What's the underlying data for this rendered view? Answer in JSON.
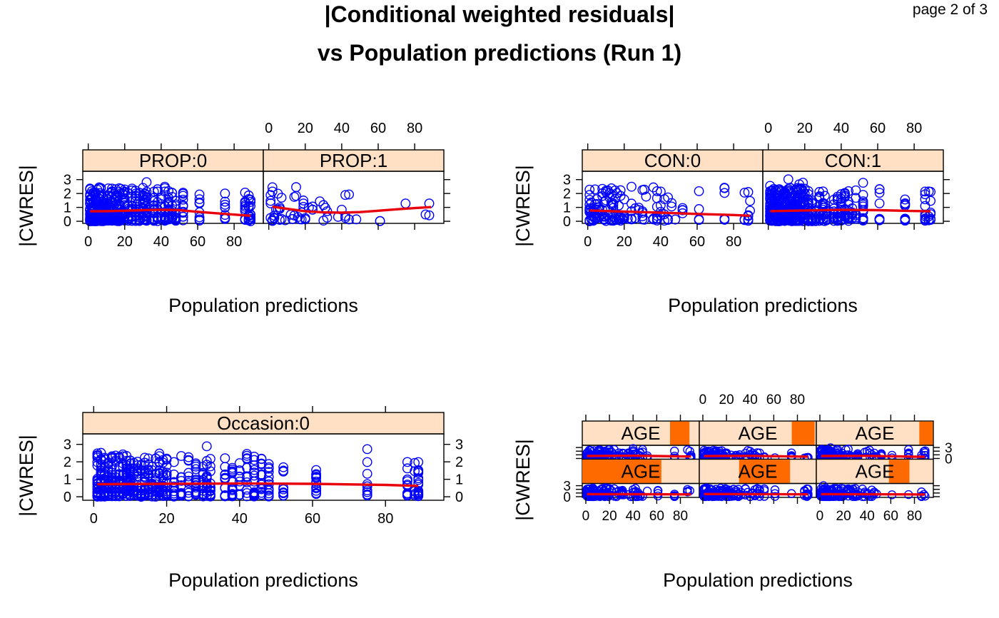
{
  "title": {
    "line1": "|Conditional weighted residuals|",
    "line2": "vs Population predictions (Run 1)",
    "page": "page 2 of 3"
  },
  "colors": {
    "point": "#0000ff",
    "smooth": "#e8000b",
    "strip_bg": "#ffe0c4",
    "strip_shade": "#ff6a00"
  },
  "chart_data": [
    {
      "type": "scatter",
      "xlabel": "Population predictions",
      "ylabel": "|CWRES|",
      "xlim": [
        -3,
        96
      ],
      "ylim": [
        -0.15,
        3.6
      ],
      "x_ticks": [
        0,
        20,
        40,
        60,
        80
      ],
      "y_ticks": [
        0,
        1,
        2,
        3
      ],
      "layout": "1x2",
      "panels": [
        {
          "strip": "PROP:0",
          "smooth": [
            [
              1,
              0.72
            ],
            [
              10,
              0.73
            ],
            [
              20,
              0.76
            ],
            [
              30,
              0.8
            ],
            [
              40,
              0.83
            ],
            [
              50,
              0.8
            ],
            [
              60,
              0.68
            ],
            [
              70,
              0.58
            ],
            [
              80,
              0.48
            ],
            [
              89,
              0.4
            ]
          ]
        },
        {
          "strip": "PROP:1",
          "smooth": [
            [
              2,
              1.05
            ],
            [
              10,
              0.9
            ],
            [
              20,
              0.72
            ],
            [
              30,
              0.64
            ],
            [
              40,
              0.62
            ],
            [
              50,
              0.66
            ],
            [
              60,
              0.76
            ],
            [
              70,
              0.86
            ],
            [
              80,
              0.95
            ],
            [
              89,
              1.02
            ]
          ]
        }
      ]
    },
    {
      "type": "scatter",
      "xlabel": "Population predictions",
      "ylabel": "|CWRES|",
      "xlim": [
        -3,
        96
      ],
      "ylim": [
        -0.15,
        3.6
      ],
      "x_ticks": [
        0,
        20,
        40,
        60,
        80
      ],
      "y_ticks": [
        0,
        1,
        2,
        3
      ],
      "layout": "1x2",
      "panels": [
        {
          "strip": "CON:0",
          "smooth": [
            [
              1,
              0.78
            ],
            [
              20,
              0.7
            ],
            [
              40,
              0.62
            ],
            [
              60,
              0.53
            ],
            [
              80,
              0.45
            ],
            [
              89,
              0.4
            ]
          ]
        },
        {
          "strip": "CON:1",
          "smooth": [
            [
              1,
              0.73
            ],
            [
              20,
              0.78
            ],
            [
              40,
              0.82
            ],
            [
              60,
              0.8
            ],
            [
              80,
              0.74
            ],
            [
              89,
              0.72
            ]
          ]
        }
      ]
    },
    {
      "type": "scatter",
      "xlabel": "Population predictions",
      "ylabel": "|CWRES|",
      "xlim": [
        -3,
        96
      ],
      "ylim": [
        -0.2,
        3.6
      ],
      "x_ticks": [
        0,
        20,
        40,
        60,
        80
      ],
      "y_ticks": [
        0,
        1,
        2,
        3
      ],
      "layout": "1x1",
      "panels": [
        {
          "strip": "Occasion:0",
          "smooth": [
            [
              1,
              0.72
            ],
            [
              20,
              0.74
            ],
            [
              40,
              0.76
            ],
            [
              60,
              0.74
            ],
            [
              80,
              0.68
            ],
            [
              89,
              0.62
            ]
          ]
        }
      ]
    },
    {
      "type": "scatter",
      "xlabel": "Population predictions",
      "ylabel": "|CWRES|",
      "xlim": [
        -3,
        96
      ],
      "ylim": [
        -0.2,
        3.6
      ],
      "x_ticks": [
        0,
        20,
        40,
        60,
        80
      ],
      "y_ticks": [
        0,
        3
      ],
      "layout": "2x3",
      "panels": [
        {
          "strip": "AGE",
          "shade": [
            0.75,
            0.92
          ],
          "smooth": [
            [
              1,
              0.7
            ],
            [
              40,
              0.75
            ],
            [
              89,
              0.55
            ]
          ]
        },
        {
          "strip": "AGE",
          "shade": [
            0.79,
            0.99
          ],
          "smooth": [
            [
              1,
              0.65
            ],
            [
              40,
              0.72
            ],
            [
              89,
              0.5
            ]
          ]
        },
        {
          "strip": "AGE",
          "shade": [
            0.88,
            1.0
          ],
          "smooth": [
            [
              1,
              0.68
            ],
            [
              40,
              0.72
            ],
            [
              89,
              0.45
            ]
          ]
        },
        {
          "strip": "AGE",
          "shade": [
            0.0,
            0.68
          ],
          "smooth": [
            [
              1,
              0.7
            ],
            [
              40,
              0.68
            ],
            [
              89,
              0.62
            ]
          ]
        },
        {
          "strip": "AGE",
          "shade": [
            0.34,
            0.78
          ],
          "smooth": [
            [
              1,
              0.72
            ],
            [
              40,
              0.7
            ],
            [
              89,
              0.64
            ]
          ]
        },
        {
          "strip": "AGE",
          "shade": [
            0.62,
            0.8
          ],
          "smooth": [
            [
              1,
              0.7
            ],
            [
              40,
              0.66
            ],
            [
              89,
              0.6
            ]
          ]
        }
      ]
    }
  ]
}
